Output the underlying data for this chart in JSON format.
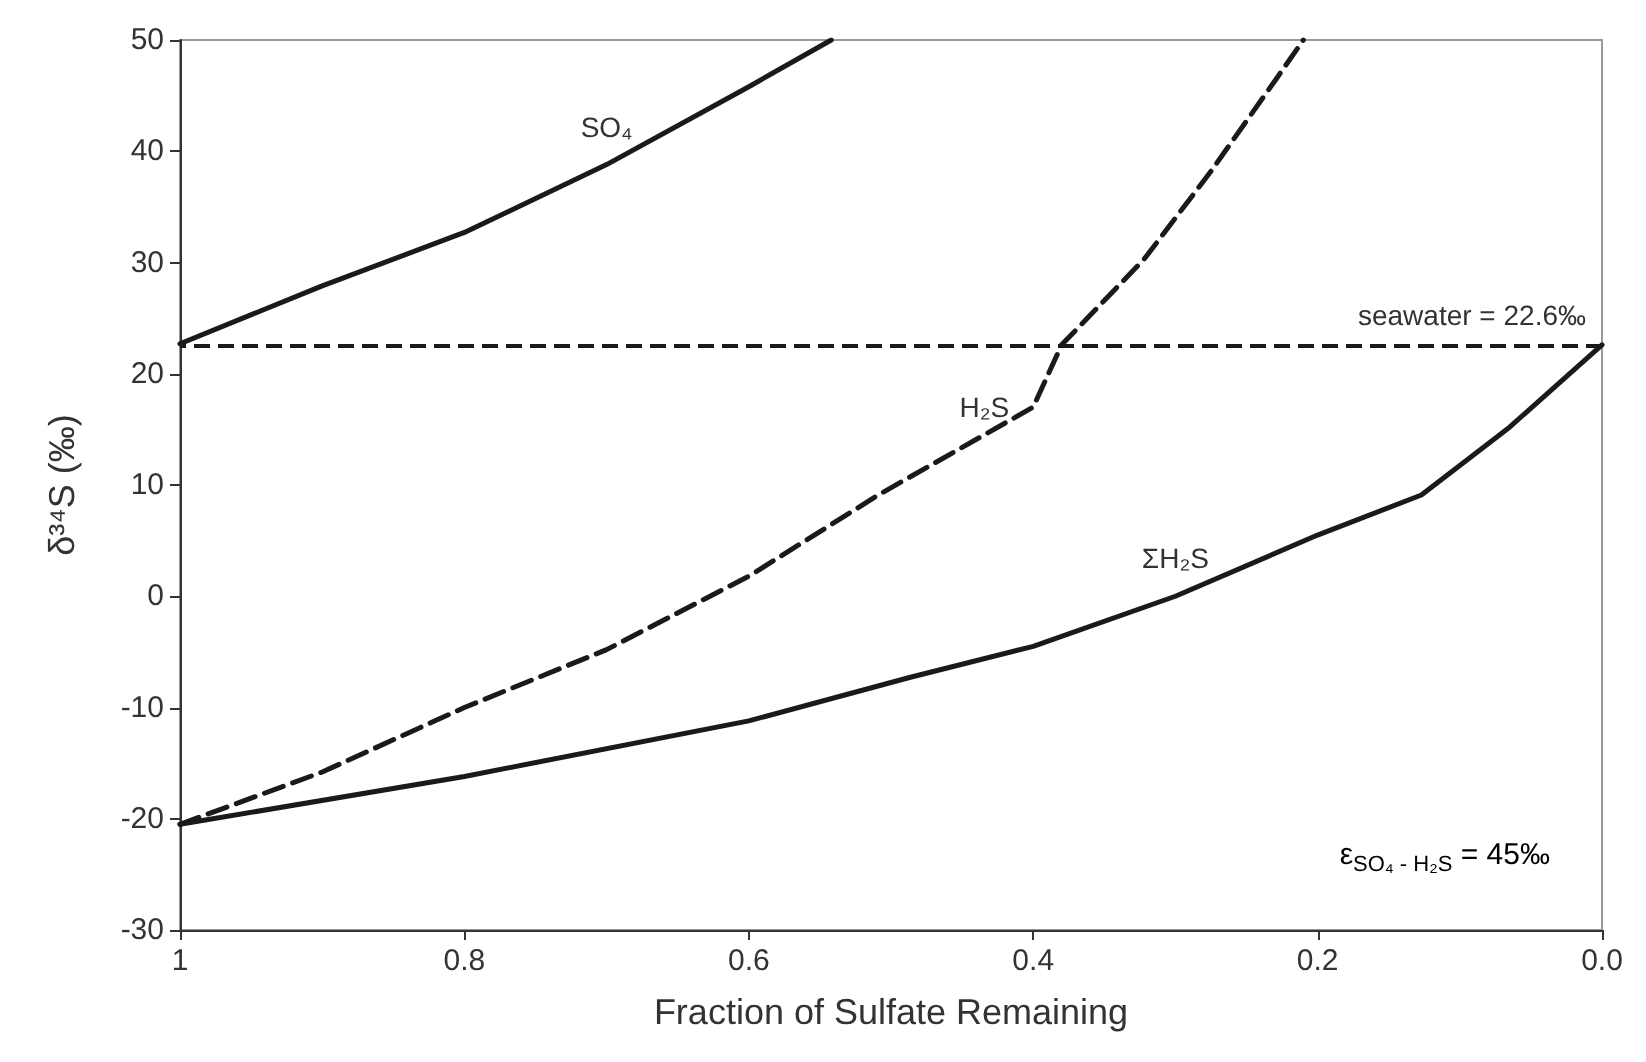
{
  "chart_data": {
    "type": "line",
    "xlabel": "Fraction of Sulfate Remaining",
    "ylabel": "δ³⁴S (‰)",
    "xlim": [
      1,
      0
    ],
    "xticks": [
      1,
      0.8,
      0.6,
      0.4,
      0.2,
      {
        "value": 0,
        "label": "0.0"
      }
    ],
    "ylim": [
      -30,
      50
    ],
    "yticks": [
      -30,
      -20,
      -10,
      0,
      10,
      20,
      30,
      40,
      50
    ],
    "grid": false,
    "legend": false,
    "marker": "none",
    "series": [
      {
        "name": "SO₄",
        "color": "#1a1a1a",
        "line_style": "solid",
        "x": [
          1,
          0.9,
          0.8,
          0.7,
          0.6,
          0.542
        ],
        "values": [
          22.7,
          27.9,
          32.7,
          38.8,
          45.8,
          50
        ]
      },
      {
        "name": "H₂S",
        "color": "#1a1a1a",
        "line_style": "dashed",
        "x": [
          1,
          0.9,
          0.8,
          0.7,
          0.6,
          0.509,
          0.4,
          0.38,
          0.322,
          0.275,
          0.228,
          0.21
        ],
        "values": [
          -20.5,
          -15.8,
          -10,
          -4.8,
          1.8,
          9.1,
          17,
          22.6,
          30.3,
          38.2,
          46.7,
          50
        ]
      },
      {
        "name": "ΣH₂S",
        "color": "#1a1a1a",
        "line_style": "solid",
        "x": [
          1,
          0.8,
          0.6,
          0.487,
          0.4,
          0.3,
          0.2,
          0.127,
          0.065,
          0
        ],
        "values": [
          -20.5,
          -16.2,
          -11.2,
          -7.3,
          -4.5,
          0,
          5.5,
          9.1,
          15.2,
          22.6
        ]
      }
    ],
    "ref_lines": [
      {
        "axis": "y",
        "value": 22.6,
        "label": "seawater = 22.6‰",
        "color": "#1a1a1a",
        "line_style": "dashed"
      }
    ],
    "annotations": [
      "ε$_{SO₄ - H₂S}$ = 45‰"
    ]
  }
}
